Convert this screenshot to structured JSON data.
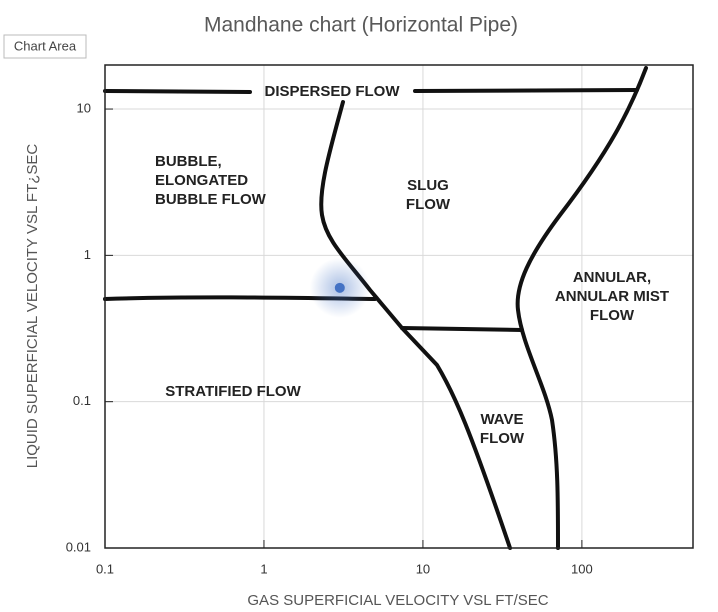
{
  "chart_data": {
    "type": "scatter",
    "title": "Mandhane chart (Horizontal Pipe)",
    "tooltip": "Chart Area",
    "x_label": "GAS SUPERFICIAL VELOCITY VSL FT/SEC",
    "y_label": "LIQUID SUPERFICIAL VELOCITY VSL FT¿SEC",
    "log_x": true,
    "log_y": true,
    "grid": true,
    "xlim": [
      0.1,
      500
    ],
    "xticks": [
      0.1,
      1,
      10,
      100
    ],
    "ylim": [
      0.01,
      20
    ],
    "yticks": [
      0.01,
      0.1,
      1,
      10
    ],
    "series": [
      {
        "color": "#4472c4",
        "x": [
          3
        ],
        "values": [
          0.6
        ]
      }
    ],
    "annotations": [
      [
        "DISPERSED FLOW"
      ],
      [
        "BUBBLE,",
        "ELONGATED",
        "BUBBLE FLOW"
      ],
      [
        "SLUG",
        "FLOW"
      ],
      [
        "ANNULAR,",
        "ANNULAR MIST",
        "FLOW"
      ],
      [
        "STRATIFIED FLOW"
      ],
      [
        "WAVE",
        "FLOW"
      ]
    ]
  }
}
